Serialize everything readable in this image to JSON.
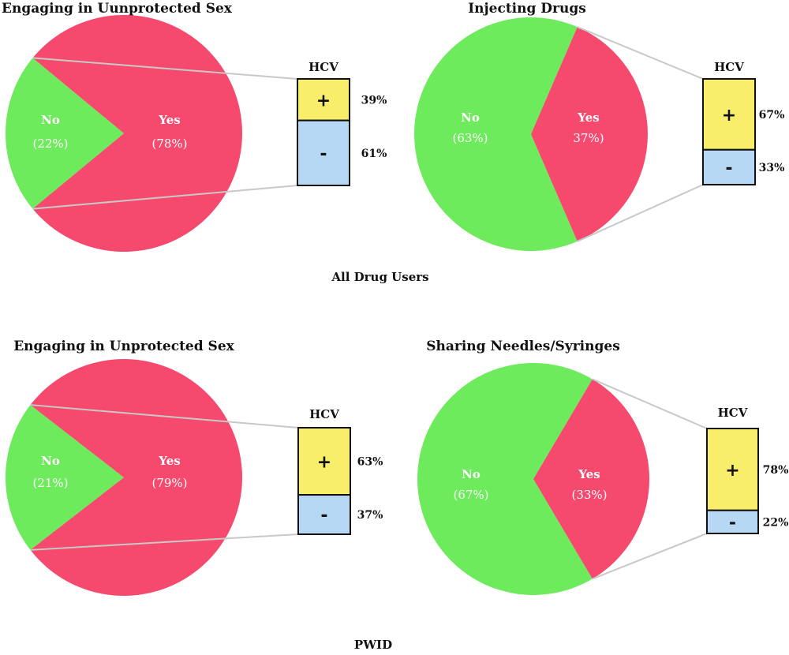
{
  "colors": {
    "yes": "#f5496e",
    "no": "#6deb5c",
    "positive": "#f8ee6a",
    "negative": "#b7d8f4",
    "connector": "#c8c8c8"
  },
  "groups": [
    "All Drug Users",
    "PWID"
  ],
  "chart_data": [
    {
      "type": "pie",
      "group": "All Drug Users",
      "title": "Engaging in Uunprotected Sex",
      "slices": [
        {
          "label": "Yes",
          "pct_text": "(78%)",
          "value": 78
        },
        {
          "label": "No",
          "pct_text": "(22%)",
          "value": 22
        }
      ],
      "hcv": {
        "title": "HCV",
        "positive": 39,
        "negative": 61,
        "positive_text": "39%",
        "negative_text": "61%",
        "positive_sign": "+",
        "negative_sign": "-"
      }
    },
    {
      "type": "pie",
      "group": "All Drug Users",
      "title": "Injecting Drugs",
      "slices": [
        {
          "label": "Yes",
          "pct_text": "37%)",
          "value": 37
        },
        {
          "label": "No",
          "pct_text": "(63%)",
          "value": 63
        }
      ],
      "hcv": {
        "title": "HCV",
        "positive": 67,
        "negative": 33,
        "positive_text": "67%",
        "negative_text": "33%",
        "positive_sign": "+",
        "negative_sign": "-"
      }
    },
    {
      "type": "pie",
      "group": "PWID",
      "title": "Engaging in Unprotected Sex",
      "slices": [
        {
          "label": "Yes",
          "pct_text": "(79%)",
          "value": 79
        },
        {
          "label": "No",
          "pct_text": "(21%)",
          "value": 21
        }
      ],
      "hcv": {
        "title": "HCV",
        "positive": 63,
        "negative": 37,
        "positive_text": "63%",
        "negative_text": "37%",
        "positive_sign": "+",
        "negative_sign": "-"
      }
    },
    {
      "type": "pie",
      "group": "PWID",
      "title": "Sharing Needles/Syringes",
      "slices": [
        {
          "label": "Yes",
          "pct_text": "(33%)",
          "value": 33
        },
        {
          "label": "No",
          "pct_text": "(67%)",
          "value": 67
        }
      ],
      "hcv": {
        "title": "HCV",
        "positive": 78,
        "negative": 22,
        "positive_text": "78%",
        "negative_text": "22%",
        "positive_sign": "+",
        "negative_sign": "-"
      }
    }
  ]
}
